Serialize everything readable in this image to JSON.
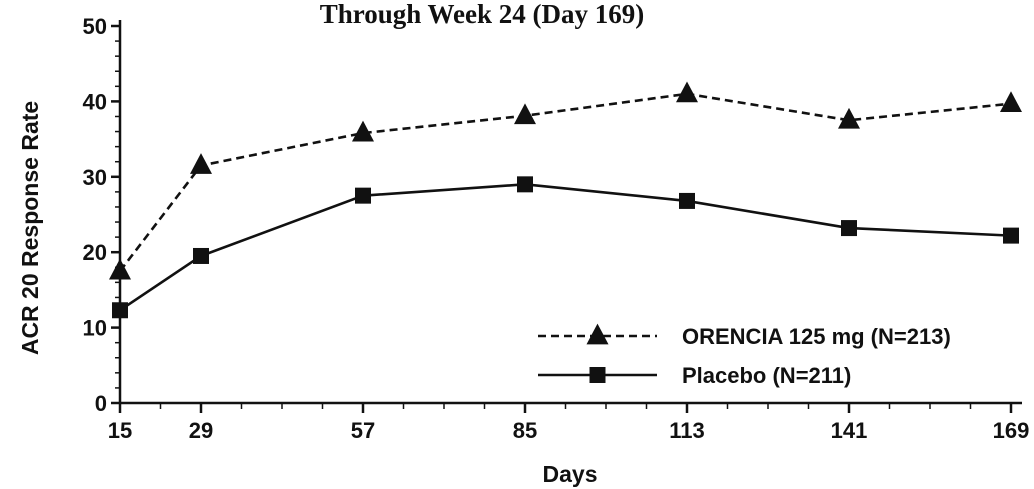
{
  "chart_data": {
    "type": "line",
    "title": "Through Week 24 (Day 169)",
    "xlabel": "Days",
    "ylabel": "ACR 20 Response Rate",
    "x": [
      15,
      29,
      57,
      85,
      113,
      141,
      169
    ],
    "xlim": [
      15,
      169
    ],
    "ylim": [
      0,
      50
    ],
    "yticks": [
      0,
      10,
      20,
      30,
      40,
      50
    ],
    "grid": false,
    "legend_position": "bottom-right",
    "series": [
      {
        "name": "ORENCIA 125 mg (N=213)",
        "line_style": "dashed",
        "marker": "triangle",
        "color": "#111111",
        "values": [
          17.5,
          31.5,
          35.8,
          38.1,
          41.0,
          37.5,
          39.7
        ]
      },
      {
        "name": "Placebo (N=211)",
        "line_style": "solid",
        "marker": "square",
        "color": "#111111",
        "values": [
          12.3,
          19.5,
          27.5,
          29.0,
          26.8,
          23.2,
          22.2
        ]
      }
    ]
  }
}
